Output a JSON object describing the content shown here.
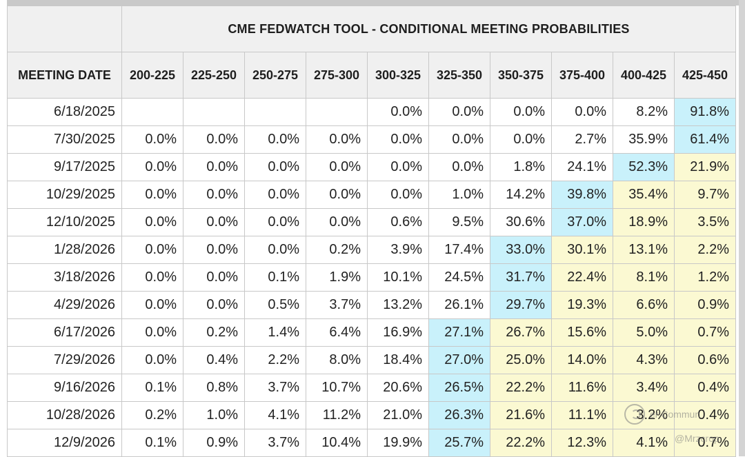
{
  "title": "CME FEDWATCH TOOL - CONDITIONAL MEETING PROBABILITIES",
  "header": {
    "meeting_date": "MEETING DATE",
    "ranges": [
      "200-225",
      "225-250",
      "250-275",
      "275-300",
      "300-325",
      "325-350",
      "350-375",
      "375-400",
      "400-425",
      "425-450"
    ]
  },
  "rows": [
    {
      "date": "6/18/2025",
      "values": [
        "",
        "",
        "",
        "",
        "0.0%",
        "0.0%",
        "0.0%",
        "0.0%",
        "8.2%",
        "91.8%"
      ]
    },
    {
      "date": "7/30/2025",
      "values": [
        "0.0%",
        "0.0%",
        "0.0%",
        "0.0%",
        "0.0%",
        "0.0%",
        "0.0%",
        "2.7%",
        "35.9%",
        "61.4%"
      ]
    },
    {
      "date": "9/17/2025",
      "values": [
        "0.0%",
        "0.0%",
        "0.0%",
        "0.0%",
        "0.0%",
        "0.0%",
        "1.8%",
        "24.1%",
        "52.3%",
        "21.9%"
      ]
    },
    {
      "date": "10/29/2025",
      "values": [
        "0.0%",
        "0.0%",
        "0.0%",
        "0.0%",
        "0.0%",
        "1.0%",
        "14.2%",
        "39.8%",
        "35.4%",
        "9.7%"
      ]
    },
    {
      "date": "12/10/2025",
      "values": [
        "0.0%",
        "0.0%",
        "0.0%",
        "0.0%",
        "0.6%",
        "9.5%",
        "30.6%",
        "37.0%",
        "18.9%",
        "3.5%"
      ]
    },
    {
      "date": "1/28/2026",
      "values": [
        "0.0%",
        "0.0%",
        "0.0%",
        "0.2%",
        "3.9%",
        "17.4%",
        "33.0%",
        "30.1%",
        "13.1%",
        "2.2%"
      ]
    },
    {
      "date": "3/18/2026",
      "values": [
        "0.0%",
        "0.0%",
        "0.1%",
        "1.9%",
        "10.1%",
        "24.5%",
        "31.7%",
        "22.4%",
        "8.1%",
        "1.2%"
      ]
    },
    {
      "date": "4/29/2026",
      "values": [
        "0.0%",
        "0.0%",
        "0.5%",
        "3.7%",
        "13.2%",
        "26.1%",
        "29.7%",
        "19.3%",
        "6.6%",
        "0.9%"
      ]
    },
    {
      "date": "6/17/2026",
      "values": [
        "0.0%",
        "0.2%",
        "1.4%",
        "6.4%",
        "16.9%",
        "27.1%",
        "26.7%",
        "15.6%",
        "5.0%",
        "0.7%"
      ]
    },
    {
      "date": "7/29/2026",
      "values": [
        "0.0%",
        "0.4%",
        "2.2%",
        "8.0%",
        "18.4%",
        "27.0%",
        "25.0%",
        "14.0%",
        "4.3%",
        "0.6%"
      ]
    },
    {
      "date": "9/16/2026",
      "values": [
        "0.1%",
        "0.8%",
        "3.7%",
        "10.7%",
        "20.6%",
        "26.5%",
        "22.2%",
        "11.6%",
        "3.4%",
        "0.4%"
      ]
    },
    {
      "date": "10/28/2026",
      "values": [
        "0.2%",
        "1.0%",
        "4.1%",
        "11.2%",
        "21.0%",
        "26.3%",
        "21.6%",
        "11.1%",
        "3.2%",
        "0.4%"
      ]
    },
    {
      "date": "12/9/2026",
      "values": [
        "0.1%",
        "0.9%",
        "3.7%",
        "10.4%",
        "19.9%",
        "25.7%",
        "22.2%",
        "12.3%",
        "4.1%",
        "0.7%"
      ]
    }
  ],
  "highlight_cols": [
    9,
    9,
    8,
    7,
    7,
    6,
    6,
    6,
    5,
    5,
    5,
    5,
    5
  ],
  "colors": {
    "max": "#c9f1fb",
    "above": "#fbf9d2",
    "header_bg": "#f0f0f0",
    "grid": "#c8c8c8"
  },
  "watermark": {
    "line1": "er Commun",
    "line2": "@Mrzcrop"
  }
}
